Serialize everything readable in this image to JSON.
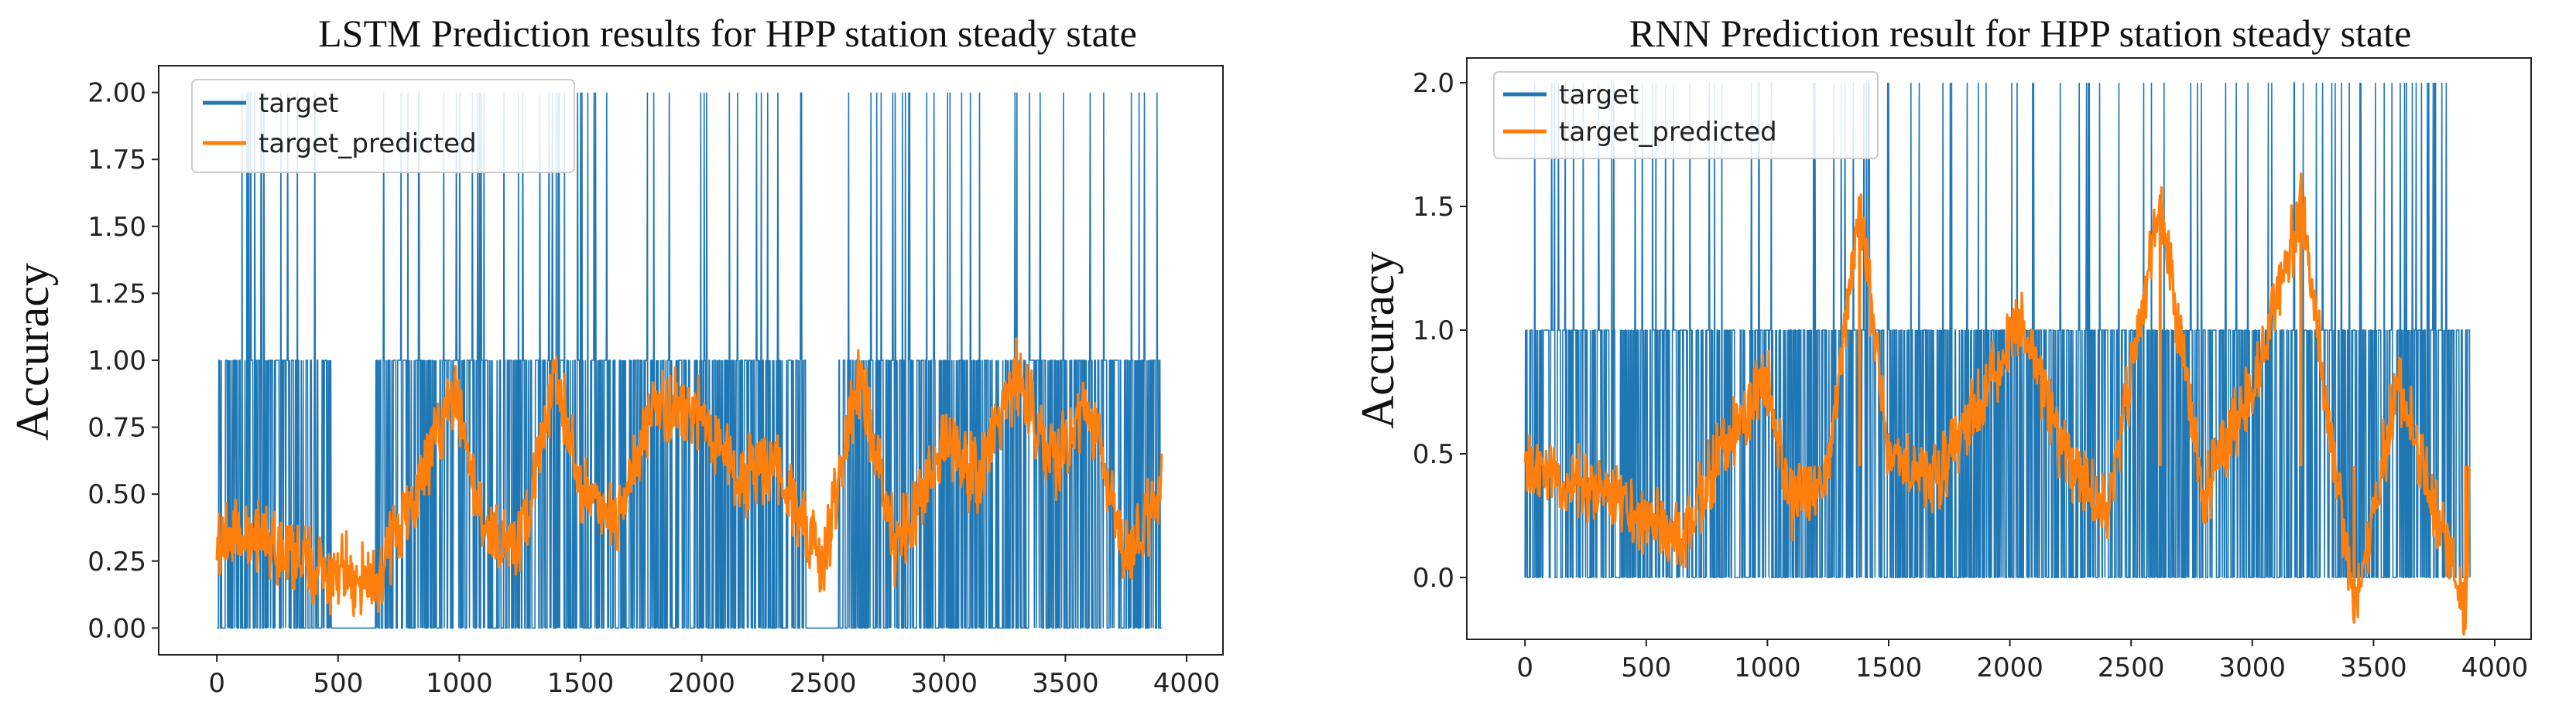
{
  "chart_data": [
    {
      "type": "line",
      "title": "LSTM Prediction results for HPP station steady state",
      "xlabel": "",
      "ylabel": "Accuracy",
      "xlim": [
        -240,
        4150
      ],
      "ylim": [
        -0.1,
        2.1
      ],
      "xticks": [
        0,
        500,
        1000,
        1500,
        2000,
        2500,
        3000,
        3500,
        4000
      ],
      "xtick_labels": [
        "0",
        "500",
        "1000",
        "1500",
        "2000",
        "2500",
        "3000",
        "3500",
        "4000"
      ],
      "yticks": [
        0.0,
        0.25,
        0.5,
        0.75,
        1.0,
        1.25,
        1.5,
        1.75,
        2.0
      ],
      "ytick_labels": [
        "0.00",
        "0.25",
        "0.50",
        "0.75",
        "1.00",
        "1.25",
        "1.50",
        "1.75",
        "2.00"
      ],
      "legend": {
        "placement": "top-left",
        "entries": [
          "target",
          "target_predicted"
        ]
      },
      "colors": {
        "target": "#1f77b4",
        "target_predicted": "#ff7f0e"
      },
      "series": [
        {
          "name": "target",
          "n_points": 3900,
          "values_description_points": [
            {
              "x": 0,
              "y": 0
            },
            {
              "x": 0,
              "y": 1
            },
            {
              "x": 100,
              "y": 2
            },
            {
              "x": 250,
              "y": 2
            },
            {
              "x": 380,
              "y": 2
            },
            {
              "x": 700,
              "y": 2
            },
            {
              "x": 1100,
              "y": 2
            },
            {
              "x": 1400,
              "y": 2
            },
            {
              "x": 1800,
              "y": 2
            },
            {
              "x": 2200,
              "y": 2
            },
            {
              "x": 2600,
              "y": 2
            },
            {
              "x": 3000,
              "y": 2
            },
            {
              "x": 3400,
              "y": 2
            },
            {
              "x": 3800,
              "y": 2
            },
            {
              "x": 3900,
              "y": 2
            }
          ],
          "gaps_without_target": [
            [
              480,
              650
            ],
            [
              2430,
              2560
            ]
          ]
        },
        {
          "name": "target_predicted",
          "n_points": 3900,
          "keypoints": [
            {
              "x": 0,
              "y": 0.3
            },
            {
              "x": 150,
              "y": 0.35
            },
            {
              "x": 300,
              "y": 0.26
            },
            {
              "x": 450,
              "y": 0.22
            },
            {
              "x": 650,
              "y": 0.18
            },
            {
              "x": 800,
              "y": 0.45
            },
            {
              "x": 980,
              "y": 0.88
            },
            {
              "x": 1100,
              "y": 0.4
            },
            {
              "x": 1250,
              "y": 0.3
            },
            {
              "x": 1400,
              "y": 0.95
            },
            {
              "x": 1500,
              "y": 0.5
            },
            {
              "x": 1650,
              "y": 0.4
            },
            {
              "x": 1800,
              "y": 0.85
            },
            {
              "x": 2000,
              "y": 0.8
            },
            {
              "x": 2150,
              "y": 0.55
            },
            {
              "x": 2300,
              "y": 0.6
            },
            {
              "x": 2500,
              "y": 0.22
            },
            {
              "x": 2650,
              "y": 0.95
            },
            {
              "x": 2800,
              "y": 0.3
            },
            {
              "x": 3000,
              "y": 0.7
            },
            {
              "x": 3150,
              "y": 0.55
            },
            {
              "x": 3300,
              "y": 0.95
            },
            {
              "x": 3450,
              "y": 0.6
            },
            {
              "x": 3600,
              "y": 0.85
            },
            {
              "x": 3750,
              "y": 0.25
            },
            {
              "x": 3900,
              "y": 0.5
            }
          ]
        }
      ]
    },
    {
      "type": "line",
      "title": "RNN Prediction result for HPP station steady state",
      "xlabel": "",
      "ylabel": "Accuracy",
      "xlim": [
        -240,
        4150
      ],
      "ylim": [
        -0.25,
        2.1
      ],
      "xticks": [
        0,
        500,
        1000,
        1500,
        2000,
        2500,
        3000,
        3500,
        4000
      ],
      "xtick_labels": [
        "0",
        "500",
        "1000",
        "1500",
        "2000",
        "2500",
        "3000",
        "3500",
        "4000"
      ],
      "yticks": [
        0.0,
        0.5,
        1.0,
        1.5,
        2.0
      ],
      "ytick_labels": [
        "0.0",
        "0.5",
        "1.0",
        "1.5",
        "2.0"
      ],
      "legend": {
        "placement": "top-left",
        "entries": [
          "target",
          "target_predicted"
        ]
      },
      "colors": {
        "target": "#1f77b4",
        "target_predicted": "#ff7f0e"
      },
      "series": [
        {
          "name": "target",
          "n_points": 3900,
          "values_description_points": [
            {
              "x": 0,
              "y": 0
            },
            {
              "x": 0,
              "y": 1
            },
            {
              "x": 100,
              "y": 2
            },
            {
              "x": 400,
              "y": 2
            },
            {
              "x": 700,
              "y": 2
            },
            {
              "x": 1100,
              "y": 2
            },
            {
              "x": 1500,
              "y": 2
            },
            {
              "x": 1900,
              "y": 2
            },
            {
              "x": 2300,
              "y": 2
            },
            {
              "x": 2700,
              "y": 2
            },
            {
              "x": 3100,
              "y": 2
            },
            {
              "x": 3500,
              "y": 2
            },
            {
              "x": 3900,
              "y": 2
            }
          ],
          "gaps_without_target": []
        },
        {
          "name": "target_predicted",
          "n_points": 3900,
          "keypoints": [
            {
              "x": 0,
              "y": 0.45
            },
            {
              "x": 150,
              "y": 0.4
            },
            {
              "x": 300,
              "y": 0.35
            },
            {
              "x": 450,
              "y": 0.25
            },
            {
              "x": 650,
              "y": 0.15
            },
            {
              "x": 800,
              "y": 0.5
            },
            {
              "x": 1000,
              "y": 0.8
            },
            {
              "x": 1100,
              "y": 0.3
            },
            {
              "x": 1250,
              "y": 0.45
            },
            {
              "x": 1380,
              "y": 1.5
            },
            {
              "x": 1500,
              "y": 0.5
            },
            {
              "x": 1700,
              "y": 0.4
            },
            {
              "x": 1900,
              "y": 0.75
            },
            {
              "x": 2050,
              "y": 1.05
            },
            {
              "x": 2200,
              "y": 0.55
            },
            {
              "x": 2400,
              "y": 0.25
            },
            {
              "x": 2620,
              "y": 1.5
            },
            {
              "x": 2800,
              "y": 0.35
            },
            {
              "x": 3000,
              "y": 0.75
            },
            {
              "x": 3200,
              "y": 1.5
            },
            {
              "x": 3420,
              "y": -0.15
            },
            {
              "x": 3600,
              "y": 0.8
            },
            {
              "x": 3750,
              "y": 0.3
            },
            {
              "x": 3880,
              "y": -0.12
            },
            {
              "x": 3900,
              "y": 0.55
            }
          ]
        }
      ]
    }
  ]
}
